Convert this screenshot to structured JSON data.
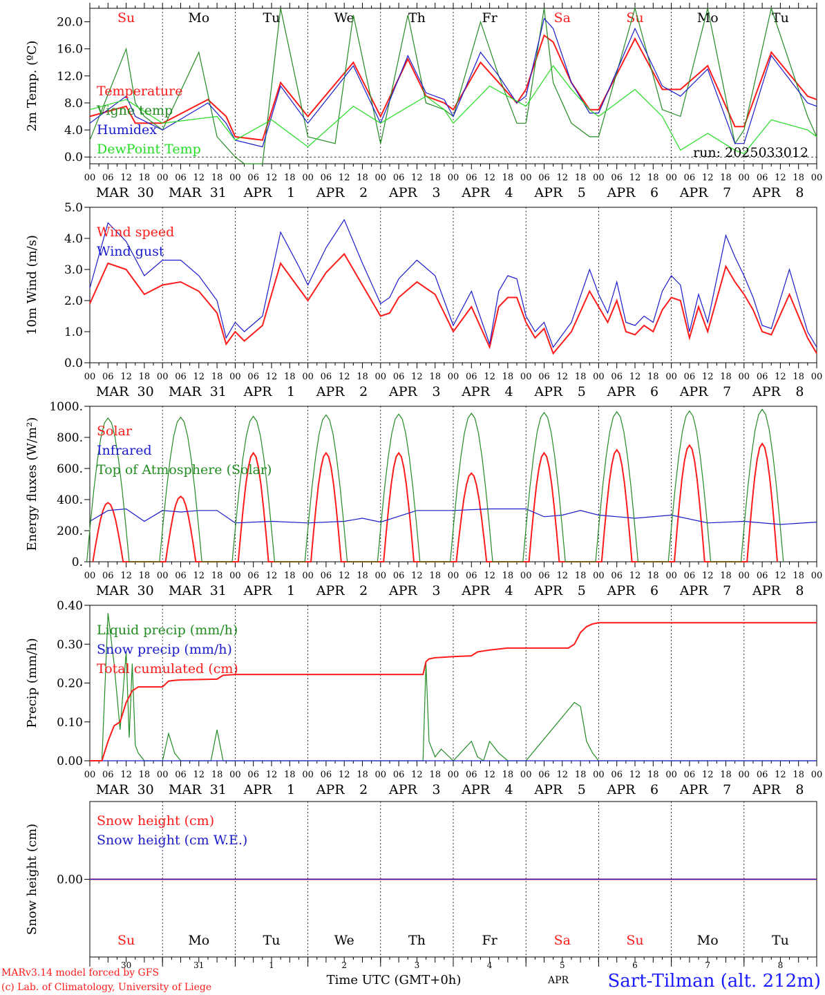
{
  "run_label": "run: 2025033012",
  "footer": {
    "model": "MARv3.14 model forced by GFS",
    "copyright": "(c) Lab. of Climatology, University of Liege",
    "time_axis": "Time UTC (GMT+0h)",
    "station": "Sart-Tilman (alt. 212m)",
    "overlap_text": "APR"
  },
  "colors": {
    "red": "#ff1a1a",
    "blue": "#1a1acc",
    "green": "#228b22",
    "lightgreen": "#22dd22",
    "axis": "#000000"
  },
  "days": [
    {
      "dow": "Su",
      "month": "MAR",
      "day": "30",
      "short": "30",
      "weekend": true
    },
    {
      "dow": "Mo",
      "month": "MAR",
      "day": "31",
      "short": "31",
      "weekend": false
    },
    {
      "dow": "Tu",
      "month": "APR",
      "day": "1",
      "short": "1",
      "weekend": false
    },
    {
      "dow": "We",
      "month": "APR",
      "day": "2",
      "short": "2",
      "weekend": false
    },
    {
      "dow": "Th",
      "month": "APR",
      "day": "3",
      "short": "3",
      "weekend": false
    },
    {
      "dow": "Fr",
      "month": "APR",
      "day": "4",
      "short": "4",
      "weekend": false
    },
    {
      "dow": "Sa",
      "month": "APR",
      "day": "5",
      "short": "5",
      "weekend": true
    },
    {
      "dow": "Su",
      "month": "APR",
      "day": "6",
      "short": "6",
      "weekend": true
    },
    {
      "dow": "Mo",
      "month": "APR",
      "day": "7",
      "short": "7",
      "weekend": false
    },
    {
      "dow": "Tu",
      "month": "APR",
      "day": "8",
      "short": "8",
      "weekend": false
    }
  ],
  "hour_ticks": [
    "00",
    "06",
    "12",
    "18"
  ],
  "chart_data": [
    {
      "type": "line",
      "id": "temp",
      "ylabel": "2m Temp. (ºC)",
      "ylim": [
        -1,
        22
      ],
      "yticks": [
        "0.0",
        "4.0",
        "8.0",
        "12.0",
        "16.0",
        "20.0"
      ],
      "zero_line": true,
      "series": [
        {
          "name": "Temperature",
          "color": "red",
          "t": [
            0,
            12,
            15,
            24,
            39,
            45,
            48,
            57,
            63,
            72,
            87,
            96,
            105,
            111,
            117,
            120,
            129,
            135,
            141,
            144,
            150,
            153,
            159,
            165,
            168,
            180,
            189,
            195,
            204,
            213,
            216,
            225,
            237,
            240
          ],
          "y": [
            6,
            7.5,
            5,
            5,
            8.5,
            6,
            3,
            2.5,
            11,
            6,
            14,
            6,
            14.5,
            9,
            8,
            7,
            14,
            11,
            8,
            10,
            18,
            17,
            11,
            7,
            7,
            17.5,
            10,
            10,
            13.5,
            4.5,
            4.5,
            15.5,
            9,
            8.5
          ]
        },
        {
          "name": "Vigne temp",
          "color": "green",
          "t": [
            0,
            12,
            15,
            18,
            24,
            36,
            42,
            48,
            51,
            57,
            63,
            72,
            81,
            87,
            96,
            105,
            111,
            117,
            120,
            129,
            135,
            141,
            144,
            150,
            153,
            159,
            165,
            168,
            180,
            189,
            195,
            204,
            213,
            216,
            225,
            237,
            240
          ],
          "y": [
            2.5,
            16,
            8,
            6,
            4,
            15.5,
            3,
            0,
            -1,
            -1,
            22,
            3,
            2,
            21,
            2,
            21,
            8,
            7,
            6,
            20,
            12,
            5,
            5,
            22,
            11,
            5,
            3,
            3,
            22,
            7,
            6,
            22,
            2,
            4,
            22,
            6,
            3
          ]
        },
        {
          "name": "Humidex",
          "color": "blue",
          "t": [
            0,
            12,
            15,
            24,
            39,
            45,
            48,
            57,
            63,
            72,
            87,
            96,
            105,
            111,
            117,
            120,
            129,
            135,
            141,
            144,
            150,
            153,
            159,
            165,
            168,
            180,
            189,
            195,
            204,
            213,
            216,
            225,
            237,
            240
          ],
          "y": [
            5,
            9,
            6,
            4,
            8,
            5,
            2.5,
            1.5,
            10.5,
            5,
            13.5,
            5,
            15,
            9.5,
            8.5,
            6,
            15.5,
            12,
            8,
            9,
            20.5,
            19,
            11,
            6.5,
            6.5,
            19,
            10.5,
            9,
            13,
            2,
            2,
            15,
            8,
            7.5
          ]
        },
        {
          "name": "DewPoint Temp",
          "color": "lightgreen",
          "t": [
            0,
            12,
            24,
            42,
            48,
            60,
            72,
            87,
            96,
            111,
            117,
            120,
            132,
            144,
            153,
            159,
            165,
            168,
            180,
            189,
            195,
            204,
            213,
            216,
            225,
            237,
            240
          ],
          "y": [
            7,
            8.5,
            5,
            6,
            2.5,
            5.5,
            1.5,
            7.5,
            5,
            9,
            7,
            5,
            10.5,
            7.5,
            13.5,
            10,
            7,
            6,
            10,
            6,
            1,
            3.5,
            1,
            0.5,
            5.5,
            4,
            3
          ]
        }
      ]
    },
    {
      "type": "line",
      "id": "wind",
      "ylabel": "10m Wind (m/s)",
      "ylim": [
        0,
        5
      ],
      "yticks": [
        "0.0",
        "1.0",
        "2.0",
        "3.0",
        "4.0",
        "5.0"
      ],
      "series": [
        {
          "name": "Wind speed",
          "color": "red",
          "t": [
            0,
            6,
            12,
            18,
            24,
            30,
            36,
            42,
            45,
            48,
            51,
            57,
            63,
            69,
            72,
            78,
            84,
            90,
            96,
            99,
            102,
            108,
            114,
            120,
            126,
            132,
            135,
            138,
            141,
            144,
            147,
            150,
            153,
            159,
            165,
            168,
            171,
            174,
            177,
            180,
            183,
            186,
            189,
            192,
            195,
            198,
            201,
            204,
            210,
            213,
            216,
            219,
            222,
            225,
            231,
            237,
            240
          ],
          "y": [
            1.9,
            3.2,
            3.0,
            2.2,
            2.5,
            2.6,
            2.3,
            1.6,
            0.6,
            1.0,
            0.7,
            1.2,
            3.2,
            2.4,
            2.0,
            2.9,
            3.5,
            2.5,
            1.5,
            1.6,
            2.1,
            2.6,
            2.2,
            1.0,
            1.8,
            0.5,
            1.8,
            2.1,
            2.1,
            1.3,
            0.8,
            1.1,
            0.3,
            1.0,
            2.3,
            1.8,
            1.3,
            2.0,
            1.0,
            0.9,
            1.2,
            1.0,
            1.7,
            2.1,
            2.0,
            0.8,
            1.8,
            1.0,
            3.1,
            2.6,
            2.2,
            1.7,
            1.0,
            0.9,
            2.2,
            0.8,
            0.3
          ]
        },
        {
          "name": "Wind gust",
          "color": "blue",
          "t": [
            0,
            6,
            12,
            18,
            24,
            30,
            36,
            42,
            45,
            48,
            51,
            57,
            63,
            69,
            72,
            78,
            84,
            90,
            96,
            99,
            102,
            108,
            114,
            120,
            126,
            132,
            135,
            138,
            141,
            144,
            147,
            150,
            153,
            159,
            165,
            168,
            171,
            174,
            177,
            180,
            183,
            186,
            189,
            192,
            195,
            198,
            201,
            204,
            210,
            213,
            216,
            219,
            222,
            225,
            231,
            237,
            240
          ],
          "y": [
            2.4,
            4.5,
            3.9,
            2.8,
            3.3,
            3.3,
            2.8,
            2.0,
            0.8,
            1.3,
            1.0,
            1.5,
            4.2,
            3.1,
            2.5,
            3.7,
            4.6,
            3.2,
            1.9,
            2.1,
            2.7,
            3.3,
            2.8,
            1.2,
            2.3,
            0.6,
            2.3,
            2.8,
            2.7,
            1.5,
            1.0,
            1.3,
            0.5,
            1.3,
            3.0,
            2.2,
            1.6,
            2.6,
            1.3,
            1.2,
            1.5,
            1.3,
            2.3,
            2.8,
            2.5,
            1.0,
            2.2,
            1.3,
            4.1,
            3.4,
            2.8,
            2.1,
            1.2,
            1.1,
            3.0,
            1.0,
            0.5
          ]
        }
      ]
    },
    {
      "type": "line",
      "id": "flux",
      "ylabel": "Energy fluxes (W/m²)",
      "ylim": [
        0,
        1000
      ],
      "yticks": [
        "0.",
        "200.",
        "400.",
        "600.",
        "800.",
        "1000."
      ],
      "series": [
        {
          "name": "Solar",
          "color": "red",
          "peaks": [
            380,
            420,
            700,
            700,
            700,
            570,
            700,
            720,
            750,
            760
          ]
        },
        {
          "name": "Infrared",
          "color": "blue",
          "t": [
            0,
            6,
            12,
            18,
            24,
            30,
            36,
            42,
            48,
            60,
            72,
            84,
            90,
            96,
            108,
            120,
            132,
            144,
            150,
            156,
            162,
            168,
            180,
            192,
            204,
            216,
            228,
            240
          ],
          "y": [
            260,
            330,
            340,
            260,
            330,
            320,
            330,
            330,
            250,
            260,
            250,
            260,
            280,
            255,
            330,
            330,
            340,
            340,
            290,
            300,
            330,
            300,
            280,
            300,
            250,
            260,
            240,
            255
          ]
        },
        {
          "name": "Top of Atmosphere (Solar)",
          "color": "green",
          "peaks": [
            925,
            930,
            935,
            945,
            950,
            955,
            960,
            965,
            970,
            980
          ]
        }
      ]
    },
    {
      "type": "line",
      "id": "precip",
      "ylabel": "Precip (mm/h)",
      "ylim": [
        0,
        0.4
      ],
      "yticks": [
        "0.00",
        "0.10",
        "0.20",
        "0.30",
        "0.40"
      ],
      "series": [
        {
          "name": "Liquid precip (mm/h)",
          "color": "green",
          "t": [
            0,
            4,
            6,
            8,
            10,
            12,
            13,
            14,
            15,
            16,
            18,
            24,
            26,
            28,
            30,
            40,
            42,
            44,
            48,
            108,
            110,
            111,
            112,
            113,
            114,
            116,
            120,
            126,
            128,
            130,
            132,
            135,
            138,
            140,
            142,
            144,
            160,
            162,
            164,
            166,
            168,
            240
          ],
          "y": [
            0,
            0,
            0.38,
            0.25,
            0.08,
            0.28,
            0.06,
            0.25,
            0.04,
            0.02,
            0,
            0,
            0.07,
            0.02,
            0,
            0,
            0.08,
            0,
            0,
            0,
            0,
            0.25,
            0.05,
            0.03,
            0.01,
            0.03,
            0,
            0.05,
            0.01,
            0,
            0.05,
            0.02,
            0,
            0,
            0,
            0,
            0.15,
            0.14,
            0.05,
            0.02,
            0,
            0
          ]
        },
        {
          "name": "Snow precip (mm/h)",
          "color": "blue",
          "t": [
            0,
            240
          ],
          "y": [
            0,
            0
          ]
        },
        {
          "name": "Total cumulated (cm)",
          "color": "red",
          "t": [
            0,
            4,
            6,
            8,
            10,
            12,
            14,
            15,
            16,
            18,
            24,
            26,
            28,
            30,
            42,
            44,
            48,
            110,
            111,
            112,
            114,
            120,
            126,
            128,
            132,
            138,
            144,
            158,
            160,
            162,
            164,
            166,
            168,
            240
          ],
          "y": [
            0,
            0,
            0.05,
            0.09,
            0.1,
            0.15,
            0.18,
            0.185,
            0.19,
            0.19,
            0.19,
            0.205,
            0.207,
            0.208,
            0.21,
            0.22,
            0.222,
            0.222,
            0.255,
            0.262,
            0.265,
            0.268,
            0.27,
            0.28,
            0.285,
            0.29,
            0.29,
            0.29,
            0.3,
            0.33,
            0.345,
            0.352,
            0.355,
            0.355
          ]
        }
      ]
    },
    {
      "type": "line",
      "id": "snow",
      "ylabel": "Snow height (cm)",
      "ylim": [
        -1,
        1
      ],
      "yticks": [
        "0.00"
      ],
      "series": [
        {
          "name": "Snow height (cm)",
          "color": "red",
          "t": [
            0,
            240
          ],
          "y": [
            0,
            0
          ]
        },
        {
          "name": "Snow height (cm W.E.)",
          "color": "blue",
          "t": [
            0,
            240
          ],
          "y": [
            0,
            0
          ]
        }
      ]
    }
  ]
}
